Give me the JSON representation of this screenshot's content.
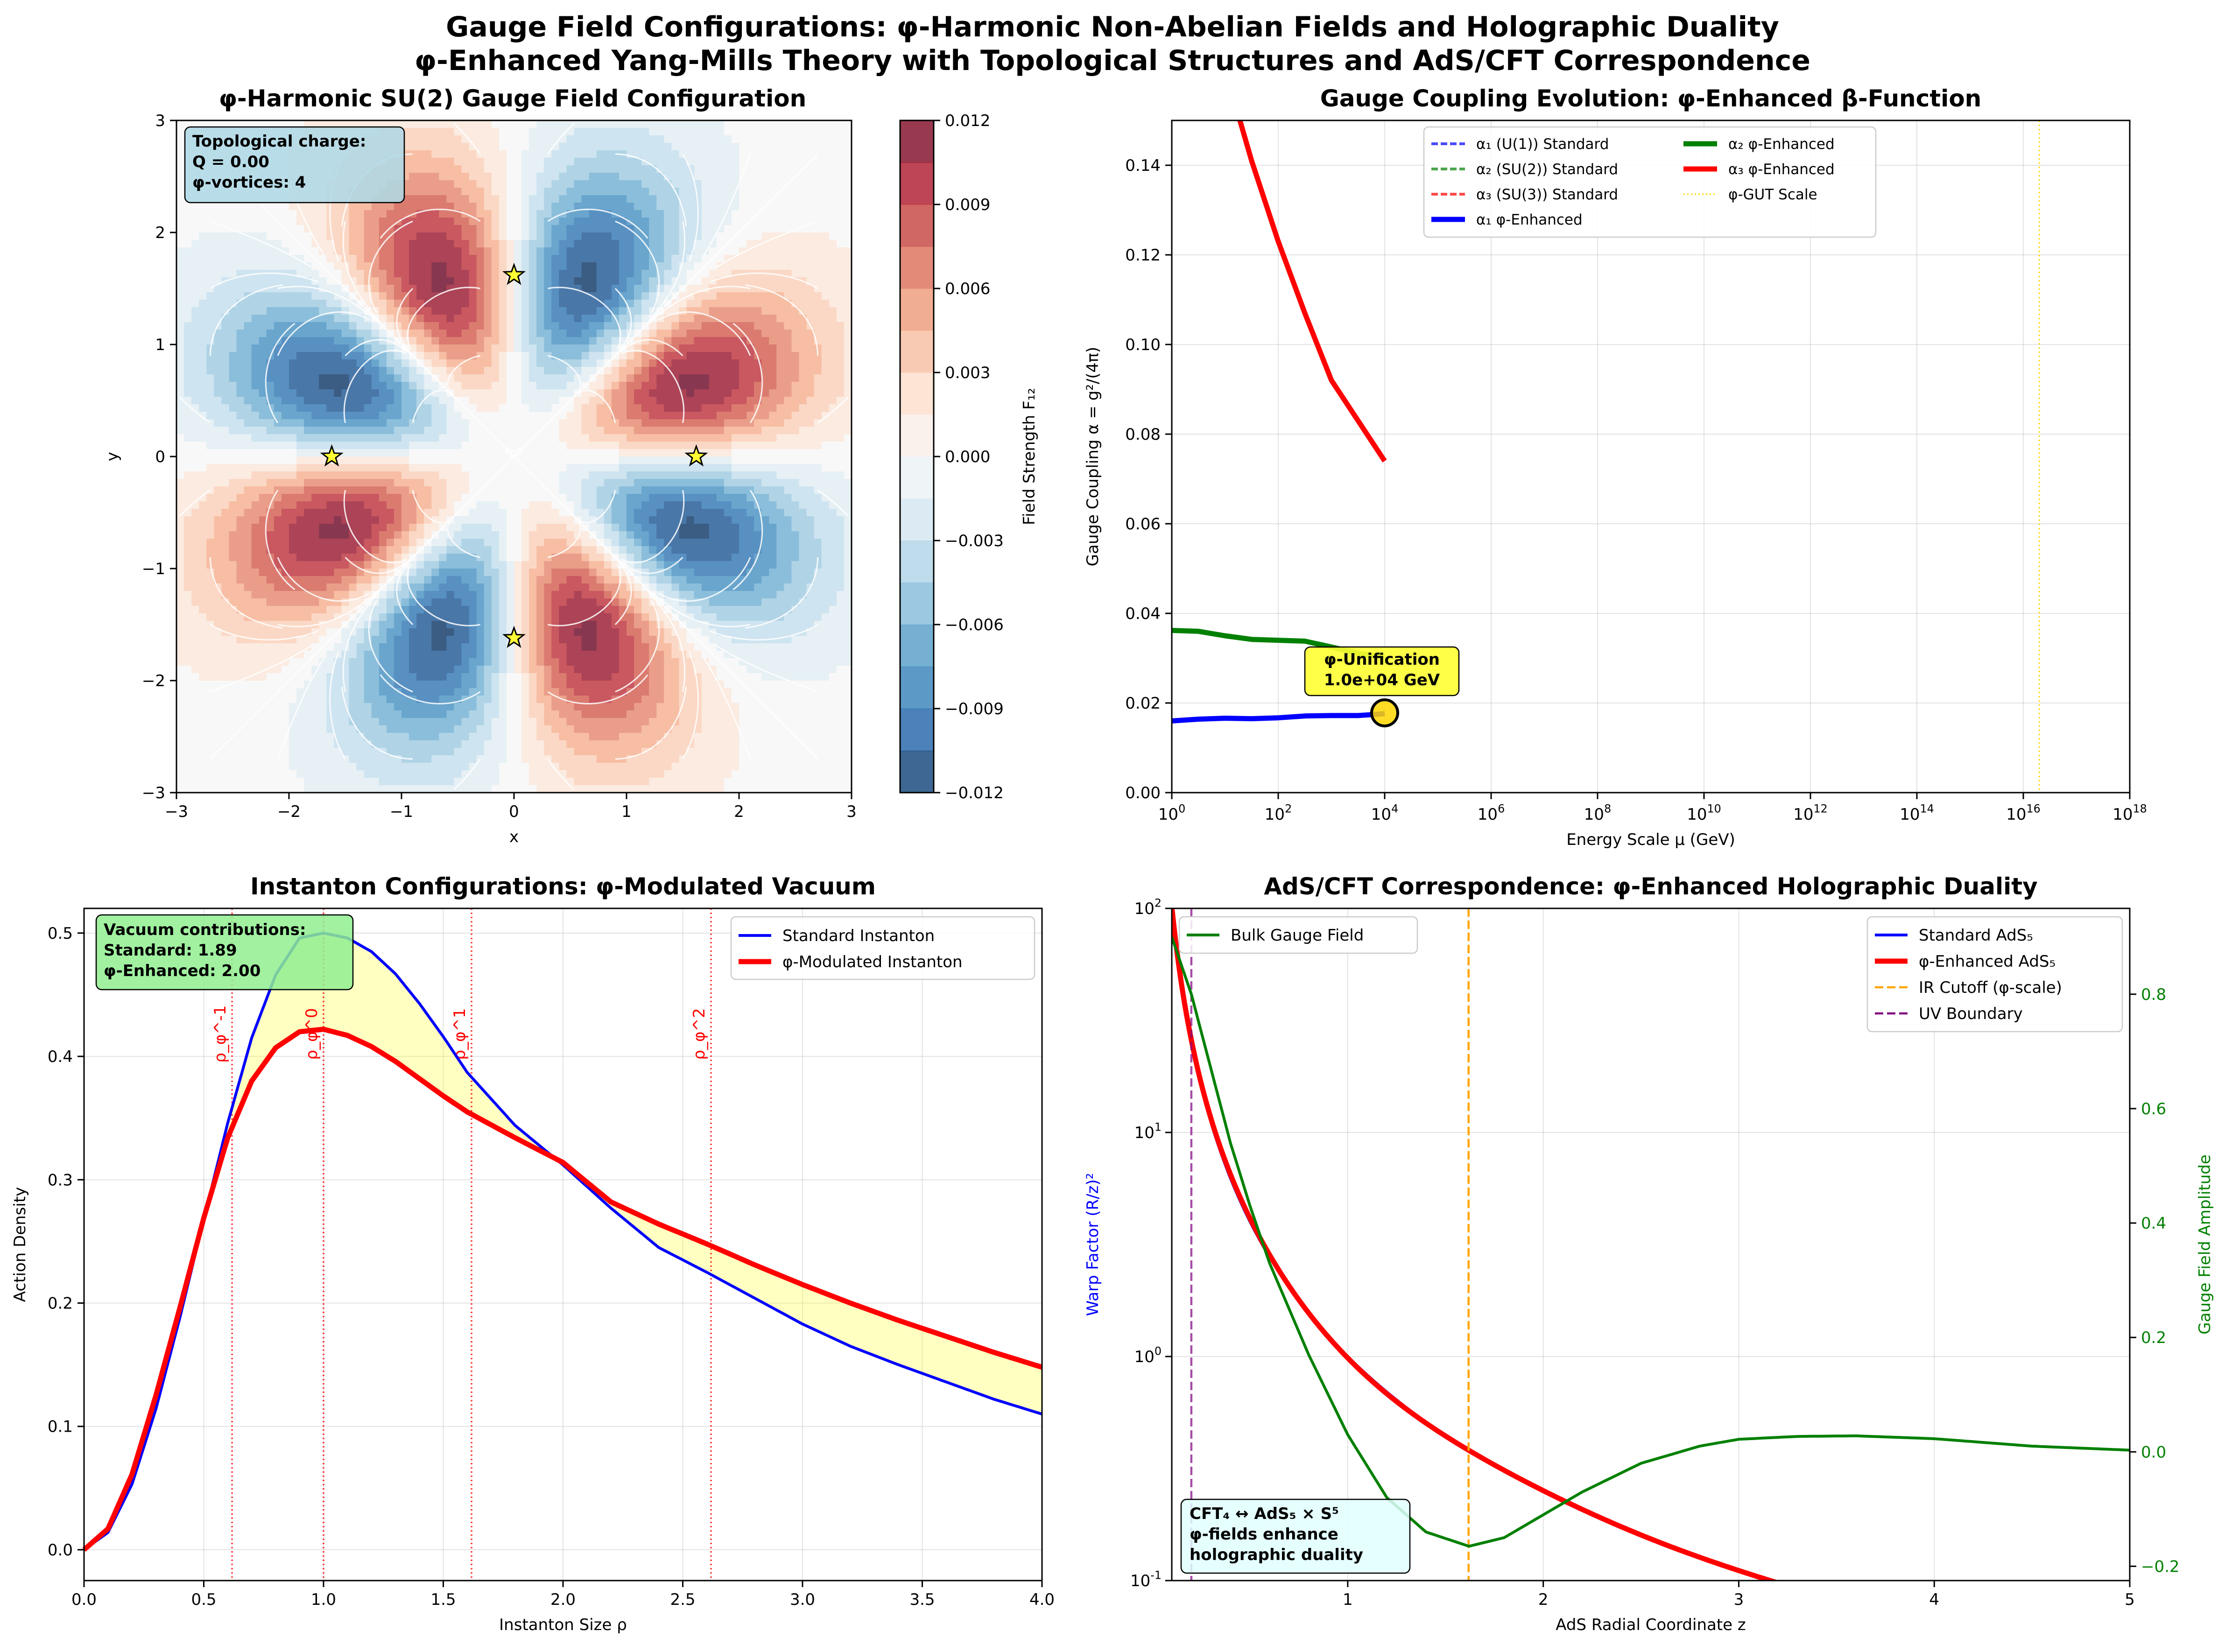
{
  "figure": {
    "title_line1": "Gauge Field Configurations: φ-Harmonic Non-Abelian Fields and Holographic Duality",
    "title_line2": "φ-Enhanced Yang-Mills Theory with Topological Structures and AdS/CFT Correspondence"
  },
  "chart_data": [
    {
      "type": "heatmap",
      "title": "φ-Harmonic SU(2) Gauge Field Configuration",
      "xlabel": "x",
      "ylabel": "y",
      "xlim": [
        -3,
        3
      ],
      "ylim": [
        -3,
        3
      ],
      "xticks": [
        "−3",
        "−2",
        "−1",
        "0",
        "1",
        "2",
        "3"
      ],
      "yticks": [
        "−3",
        "−2",
        "−1",
        "0",
        "1",
        "2",
        "3"
      ],
      "colorbar": {
        "label": "Field Strength F₁₂",
        "range": [
          -0.012,
          0.012
        ],
        "ticks": [
          "0.012",
          "0.009",
          "0.006",
          "0.003",
          "0.000",
          "−0.003",
          "−0.006",
          "−0.009",
          "−0.012"
        ],
        "cmap": "RdBu_r"
      },
      "field_model": "F12 ∝ r^3 · exp(−r^2/2) · sin(4θ), with streamline overlay",
      "vortex_markers": [
        {
          "x": 0.0,
          "y": 1.62
        },
        {
          "x": -1.62,
          "y": 0.0
        },
        {
          "x": 1.62,
          "y": 0.0
        },
        {
          "x": 0.0,
          "y": -1.62
        }
      ],
      "annotation": [
        "Topological charge:",
        "Q = 0.00",
        "φ-vortices: 4"
      ]
    },
    {
      "type": "line",
      "title": "Gauge Coupling Evolution: φ-Enhanced β-Function",
      "xlabel": "Energy Scale μ (GeV)",
      "ylabel": "Gauge Coupling α = g²/(4π)",
      "xscale": "log",
      "xlim_log10": [
        0,
        18
      ],
      "ylim": [
        0,
        0.15
      ],
      "xtick_exponents": [
        "0",
        "2",
        "4",
        "6",
        "8",
        "10",
        "12",
        "14",
        "16",
        "18"
      ],
      "yticks": [
        "0.00",
        "0.02",
        "0.04",
        "0.06",
        "0.08",
        "0.10",
        "0.12",
        "0.14"
      ],
      "legend": [
        {
          "label": "α₁ (U(1)) Standard",
          "color": "#0000ff",
          "style": "dashed"
        },
        {
          "label": "α₂ (SU(2)) Standard",
          "color": "#008000",
          "style": "dashed"
        },
        {
          "label": "α₃ (SU(3)) Standard",
          "color": "#ff0000",
          "style": "dashed"
        },
        {
          "label": "α₁ φ-Enhanced",
          "color": "#0000ff",
          "style": "solid"
        },
        {
          "label": "α₂ φ-Enhanced",
          "color": "#008000",
          "style": "solid"
        },
        {
          "label": "α₃ φ-Enhanced",
          "color": "#ff0000",
          "style": "solid"
        },
        {
          "label": "φ-GUT Scale",
          "color": "#ffd700",
          "style": "dotted"
        }
      ],
      "series": [
        {
          "name": "α₁ φ-Enhanced",
          "log10_mu": [
            0,
            0.5,
            1,
            1.5,
            2,
            2.5,
            3,
            3.5,
            4
          ],
          "alpha": [
            0.016,
            0.0164,
            0.0166,
            0.0165,
            0.0167,
            0.0171,
            0.0172,
            0.0172,
            0.0176
          ]
        },
        {
          "name": "α₂ φ-Enhanced",
          "log10_mu": [
            0,
            0.5,
            1,
            1.5,
            2,
            2.5,
            3,
            3.5,
            4
          ],
          "alpha": [
            0.0362,
            0.036,
            0.035,
            0.0342,
            0.034,
            0.0338,
            0.0325,
            0.0311,
            0.0302
          ]
        },
        {
          "name": "α₃ φ-Enhanced",
          "log10_mu": [
            1.28,
            1.5,
            2,
            2.5,
            3,
            3.5,
            4
          ],
          "alpha": [
            0.15,
            0.141,
            0.123,
            0.107,
            0.092,
            0.083,
            0.074
          ]
        }
      ],
      "gut_scale_log10": 16.3,
      "unification_point": {
        "log10_mu": 4,
        "alpha": 0.0178
      },
      "unification_label": [
        "φ-Unification",
        "1.0e+04 GeV"
      ]
    },
    {
      "type": "line",
      "title": "Instanton Configurations: φ-Modulated Vacuum",
      "xlabel": "Instanton Size ρ",
      "ylabel": "Action Density",
      "xlim": [
        0,
        4
      ],
      "ylim": [
        -0.025,
        0.52
      ],
      "xticks": [
        "0.0",
        "0.5",
        "1.0",
        "1.5",
        "2.0",
        "2.5",
        "3.0",
        "3.5",
        "4.0"
      ],
      "yticks": [
        "0.0",
        "0.1",
        "0.2",
        "0.3",
        "0.4",
        "0.5"
      ],
      "series": [
        {
          "name": "Standard Instanton",
          "color": "#0000ff",
          "x": [
            0,
            0.1,
            0.2,
            0.3,
            0.4,
            0.5,
            0.6,
            0.7,
            0.8,
            0.9,
            1.0,
            1.1,
            1.2,
            1.3,
            1.4,
            1.5,
            1.6,
            1.8,
            2.0,
            2.2,
            2.4,
            2.6,
            2.8,
            3.0,
            3.2,
            3.4,
            3.6,
            3.8,
            4.0
          ],
          "y": [
            0,
            0.014,
            0.053,
            0.114,
            0.188,
            0.268,
            0.346,
            0.415,
            0.466,
            0.496,
            0.5,
            0.496,
            0.485,
            0.467,
            0.443,
            0.416,
            0.387,
            0.344,
            0.312,
            0.277,
            0.245,
            0.225,
            0.204,
            0.183,
            0.165,
            0.15,
            0.136,
            0.122,
            0.11
          ]
        },
        {
          "name": "φ-Modulated Instanton",
          "color": "#ff0000",
          "x": [
            0,
            0.1,
            0.2,
            0.3,
            0.4,
            0.5,
            0.6,
            0.7,
            0.8,
            0.9,
            1.0,
            1.1,
            1.2,
            1.3,
            1.4,
            1.5,
            1.6,
            1.8,
            2.0,
            2.2,
            2.4,
            2.6,
            2.8,
            3.0,
            3.2,
            3.4,
            3.6,
            3.8,
            4.0
          ],
          "y": [
            0,
            0.017,
            0.061,
            0.125,
            0.196,
            0.269,
            0.334,
            0.38,
            0.407,
            0.42,
            0.422,
            0.417,
            0.408,
            0.396,
            0.382,
            0.368,
            0.355,
            0.334,
            0.314,
            0.282,
            0.264,
            0.248,
            0.231,
            0.215,
            0.2,
            0.186,
            0.173,
            0.16,
            0.148
          ]
        }
      ],
      "fill_between": "Standard vs φ-Modulated (yellow)",
      "vlines": [
        {
          "x": 0.618,
          "label": "ρ_φ^-1"
        },
        {
          "x": 1.0,
          "label": "ρ_φ^0"
        },
        {
          "x": 1.618,
          "label": "ρ_φ^1"
        },
        {
          "x": 2.618,
          "label": "ρ_φ^2"
        }
      ],
      "annotation": [
        "Vacuum contributions:",
        "Standard: 1.89",
        "φ-Enhanced: 2.00"
      ]
    },
    {
      "type": "line",
      "title": "AdS/CFT Correspondence: φ-Enhanced Holographic Duality",
      "xlabel": "AdS Radial Coordinate z",
      "ylabel": "Warp Factor (R/z)²",
      "y2label": "Gauge Field Amplitude",
      "xlim": [
        0.1,
        5
      ],
      "ylim_log10": [
        -1,
        2
      ],
      "y2lim": [
        -0.225,
        0.95
      ],
      "xticks": [
        "1",
        "2",
        "3",
        "4",
        "5"
      ],
      "ytick_exponents": [
        "-1",
        "0",
        "1",
        "2"
      ],
      "y2ticks": [
        "−0.2",
        "0.0",
        "0.2",
        "0.4",
        "0.6",
        "0.8"
      ],
      "series": [
        {
          "name": "Standard AdS₅",
          "color": "#0000ff",
          "formula": "1/z^2"
        },
        {
          "name": "φ-Enhanced AdS₅",
          "color": "#ff0000",
          "formula": "1/z^2 · (1 + small φ-correction)"
        },
        {
          "name": "Bulk Gauge Field",
          "color": "#008000",
          "axis": "right",
          "z": [
            0.1,
            0.2,
            0.3,
            0.4,
            0.5,
            0.6,
            0.8,
            1.0,
            1.2,
            1.4,
            1.62,
            1.8,
            2.0,
            2.2,
            2.5,
            2.8,
            3.0,
            3.3,
            3.6,
            4.0,
            4.5,
            5.0
          ],
          "a": [
            0.9,
            0.8,
            0.67,
            0.54,
            0.43,
            0.33,
            0.17,
            0.03,
            -0.08,
            -0.14,
            -0.165,
            -0.15,
            -0.11,
            -0.07,
            -0.02,
            0.01,
            0.022,
            0.027,
            0.028,
            0.023,
            0.01,
            0.003
          ]
        }
      ],
      "legend_left": [
        "Bulk Gauge Field"
      ],
      "legend_right": [
        {
          "label": "Standard AdS₅",
          "color": "#0000ff",
          "style": "solid"
        },
        {
          "label": "φ-Enhanced AdS₅",
          "color": "#ff0000",
          "style": "solid"
        },
        {
          "label": "IR Cutoff (φ-scale)",
          "color": "#ffa500",
          "style": "dashed"
        },
        {
          "label": "UV Boundary",
          "color": "#800080",
          "style": "dashed"
        }
      ],
      "ir_cutoff_z": 1.618,
      "uv_boundary_z": 0.2,
      "annotation": [
        "CFT₄ ↔ AdS₅ × S⁵",
        "φ-fields enhance",
        "holographic duality"
      ]
    }
  ]
}
